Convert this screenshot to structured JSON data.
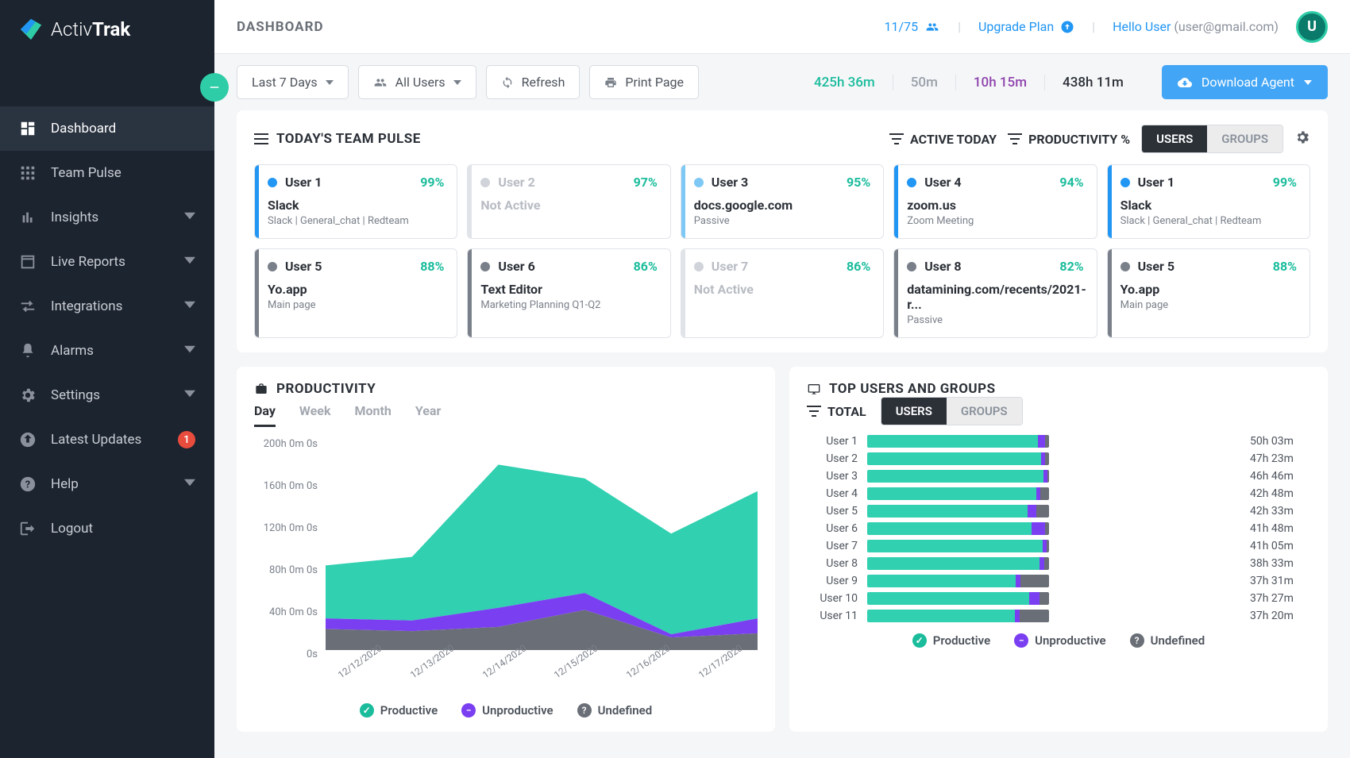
{
  "brand": {
    "name_a": "Activ",
    "name_b": "Trak"
  },
  "page_title": "DASHBOARD",
  "header": {
    "user_count": "11/75",
    "upgrade": "Upgrade Plan",
    "hello": "Hello User",
    "email": "(user@gmail.com)",
    "avatar": "U"
  },
  "sidebar": {
    "items": [
      {
        "id": "dashboard",
        "label": "Dashboard",
        "active": true,
        "expandable": false
      },
      {
        "id": "team-pulse",
        "label": "Team Pulse",
        "expandable": false
      },
      {
        "id": "insights",
        "label": "Insights",
        "expandable": true
      },
      {
        "id": "live-reports",
        "label": "Live Reports",
        "expandable": true
      },
      {
        "id": "integrations",
        "label": "Integrations",
        "expandable": true
      },
      {
        "id": "alarms",
        "label": "Alarms",
        "expandable": true
      },
      {
        "id": "settings",
        "label": "Settings",
        "expandable": true
      },
      {
        "id": "latest-updates",
        "label": "Latest Updates",
        "badge": "1"
      },
      {
        "id": "help",
        "label": "Help",
        "expandable": true
      },
      {
        "id": "logout",
        "label": "Logout"
      }
    ]
  },
  "toolbar": {
    "range": "Last 7 Days",
    "users": "All Users",
    "refresh": "Refresh",
    "print": "Print Page",
    "download": "Download Agent",
    "stats": [
      {
        "val": "425h 36m",
        "cls": "teal"
      },
      {
        "val": "50m",
        "cls": "grey"
      },
      {
        "val": "10h 15m",
        "cls": "purple"
      },
      {
        "val": "438h 11m",
        "cls": "dark"
      }
    ]
  },
  "pulse": {
    "title": "TODAY'S TEAM PULSE",
    "f_active": "ACTIVE TODAY",
    "f_prod": "PRODUCTIVITY %",
    "seg": {
      "on": "USERS",
      "off": "GROUPS"
    },
    "colors": {
      "blue": "#2196f3",
      "lblue": "#7ec8f5",
      "grey": "#7a808a",
      "border_blue": "#2196f3",
      "border_grey": "#c9cdd3"
    },
    "cards": [
      {
        "user": "User 1",
        "pct": "99%",
        "app": "Slack",
        "sub": "Slack | General_chat | Redteam",
        "dot": "blue",
        "bar": "#2196f3"
      },
      {
        "user": "User 2",
        "pct": "97%",
        "app": "Not Active",
        "sub": "",
        "dot": "grey",
        "inactive": true,
        "bar": "#e0e3e8"
      },
      {
        "user": "User 3",
        "pct": "95%",
        "app": "docs.google.com",
        "sub": "Passive",
        "dot": "lblue",
        "bar": "#7ec8f5"
      },
      {
        "user": "User 4",
        "pct": "94%",
        "app": "zoom.us",
        "sub": "Zoom Meeting",
        "dot": "blue",
        "bar": "#2196f3"
      },
      {
        "user": "User 1",
        "pct": "99%",
        "app": "Slack",
        "sub": "Slack | General_chat | Redteam",
        "dot": "blue",
        "bar": "#2196f3"
      },
      {
        "user": "User 5",
        "pct": "88%",
        "app": "Yo.app",
        "sub": "Main page",
        "dot": "grey",
        "bar": "#7a808a"
      },
      {
        "user": "User 6",
        "pct": "86%",
        "app": "Text Editor",
        "sub": "Marketing Planning Q1-Q2",
        "dot": "grey",
        "bar": "#7a808a"
      },
      {
        "user": "User 7",
        "pct": "86%",
        "app": "Not Active",
        "sub": "",
        "dot": "grey",
        "inactive": true,
        "bar": "#e0e3e8"
      },
      {
        "user": "User 8",
        "pct": "82%",
        "app": "datamining.com/recents/2021-r...",
        "sub": "Passive",
        "dot": "grey",
        "bar": "#7a808a"
      },
      {
        "user": "User 5",
        "pct": "88%",
        "app": "Yo.app",
        "sub": "Main page",
        "dot": "grey",
        "bar": "#7a808a"
      }
    ]
  },
  "productivity": {
    "title": "PRODUCTIVITY",
    "tabs": [
      "Day",
      "Week",
      "Month",
      "Year"
    ],
    "active_tab": 0,
    "y_ticks": [
      "200h 0m 0s",
      "160h 0m 0s",
      "120h 0m 0s",
      "80h 0m 0s",
      "40h 0m 0s",
      "0s"
    ],
    "y_max": 200,
    "x_labels": [
      "12/12/2020",
      "12/13/2020",
      "12/14/2020",
      "12/15/2020",
      "12/16/2020",
      "12/17/2020"
    ],
    "series": {
      "undefined": [
        20,
        18,
        22,
        38,
        12,
        16
      ],
      "unproductive": [
        10,
        10,
        18,
        16,
        3,
        14
      ],
      "productive": [
        50,
        60,
        135,
        108,
        95,
        120
      ]
    },
    "colors": {
      "productive": "#30d0b0",
      "unproductive": "#7b3ff2",
      "undefined": "#6a6f77",
      "grid": "#eceef1"
    },
    "legend": {
      "productive": "Productive",
      "unproductive": "Unproductive",
      "undefined": "Undefined"
    }
  },
  "topusers": {
    "title": "TOP USERS AND GROUPS",
    "total": "TOTAL",
    "seg": {
      "on": "USERS",
      "off": "GROUPS"
    },
    "max": 50,
    "rows": [
      {
        "name": "User 1",
        "p": 47,
        "u": 2,
        "d": 1,
        "val": "50h 03m"
      },
      {
        "name": "User 2",
        "p": 45,
        "u": 1,
        "d": 1,
        "val": "47h 23m"
      },
      {
        "name": "User 3",
        "p": 45,
        "u": 1,
        "d": 0.5,
        "val": "46h 46m"
      },
      {
        "name": "User 4",
        "p": 40,
        "u": 1,
        "d": 2,
        "val": "42h 48m"
      },
      {
        "name": "User 5",
        "p": 38,
        "u": 2,
        "d": 3,
        "val": "42h 33m"
      },
      {
        "name": "User 6",
        "p": 38,
        "u": 3,
        "d": 1,
        "val": "41h 48m"
      },
      {
        "name": "User 7",
        "p": 40,
        "u": 1,
        "d": 0.5,
        "val": "41h 05m"
      },
      {
        "name": "User 8",
        "p": 37,
        "u": 1,
        "d": 1,
        "val": "38h 33m"
      },
      {
        "name": "User 9",
        "p": 31,
        "u": 1,
        "d": 6,
        "val": "37h 31m"
      },
      {
        "name": "User 10",
        "p": 33,
        "u": 2,
        "d": 2,
        "val": "37h 27m"
      },
      {
        "name": "User 11",
        "p": 30,
        "u": 1,
        "d": 6,
        "val": "37h 20m"
      }
    ]
  }
}
